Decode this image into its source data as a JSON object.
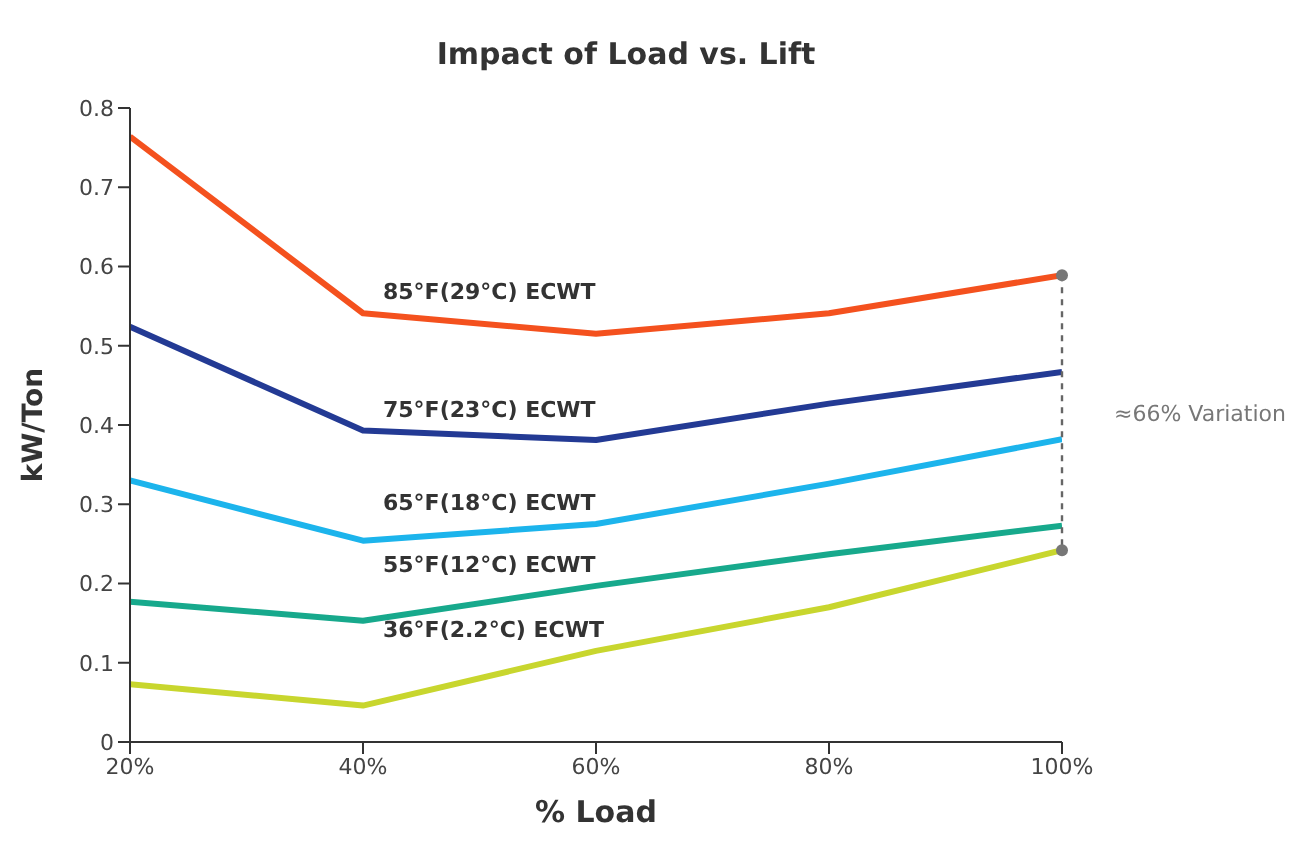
{
  "chart_data": {
    "type": "line",
    "title": "Impact of Load vs. Lift",
    "xlabel": "% Load",
    "ylabel": "kW/Ton",
    "x": [
      20,
      40,
      60,
      80,
      100
    ],
    "xlim": [
      20,
      100
    ],
    "xticks": [
      {
        "value": 20,
        "label": "20%"
      },
      {
        "value": 40,
        "label": "40%"
      },
      {
        "value": 60,
        "label": "60%"
      },
      {
        "value": 80,
        "label": "80%"
      },
      {
        "value": 100,
        "label": "100%"
      }
    ],
    "ylim": [
      0,
      0.8
    ],
    "yticks": [
      0,
      0.1,
      0.2,
      0.3,
      0.4,
      0.5,
      0.6,
      0.7,
      0.8
    ],
    "series": [
      {
        "name": "85°F(29°C) ECWT",
        "color": "#f4511e",
        "values": [
          0.764,
          0.541,
          0.515,
          0.541,
          0.589
        ]
      },
      {
        "name": "75°F(23°C) ECWT",
        "color": "#233a94",
        "values": [
          0.524,
          0.393,
          0.381,
          0.427,
          0.467
        ]
      },
      {
        "name": "65°F(18°C) ECWT",
        "color": "#1cb4ec",
        "values": [
          0.33,
          0.254,
          0.275,
          0.326,
          0.382
        ]
      },
      {
        "name": "55°F(12°C) ECWT",
        "color": "#17a98c",
        "values": [
          0.177,
          0.153,
          0.197,
          0.237,
          0.273
        ]
      },
      {
        "name": "36°F(2.2°C) ECWT",
        "color": "#c8d62e",
        "values": [
          0.073,
          0.046,
          0.115,
          0.17,
          0.242
        ]
      }
    ],
    "annotations": [
      "≈66% Variation"
    ],
    "grid": false,
    "legend": false,
    "marker": "none",
    "line_style": "solid"
  }
}
